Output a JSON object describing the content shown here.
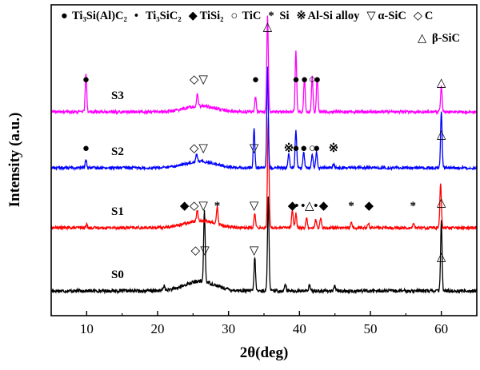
{
  "chart_data": {
    "type": "line",
    "xlabel": "2θ(deg)",
    "ylabel": "Intensity (a.u.)",
    "xlim": [
      5,
      65
    ],
    "xticks": [
      10,
      20,
      30,
      40,
      50,
      60
    ],
    "y_ticks_shown": false,
    "legend_placement": "top",
    "legend": [
      {
        "symbol": "●",
        "label": "Ti₃Si(Al)C₂"
      },
      {
        "symbol": "•",
        "label": "Ti₃SiC₂"
      },
      {
        "symbol": "◆",
        "label": "TiSi₂"
      },
      {
        "symbol": "○",
        "label": "TiC"
      },
      {
        "symbol": "*",
        "label": "Si"
      },
      {
        "symbol": "※",
        "label": "Al-Si alloy"
      },
      {
        "symbol": "▽",
        "label": "α-SiC"
      },
      {
        "symbol": "◇",
        "label": "C"
      },
      {
        "symbol": "△",
        "label": "β-SiC"
      }
    ],
    "series": [
      {
        "name": "S0",
        "color": "#000000",
        "baseline": 0.0,
        "background_hump": {
          "center": 26.0,
          "width": 3.0,
          "height": 0.1
        },
        "peaks": [
          [
            20.9,
            0.05
          ],
          [
            26.6,
            0.75
          ],
          [
            33.7,
            0.35
          ],
          [
            35.6,
            1.0
          ],
          [
            38.0,
            0.08
          ],
          [
            41.4,
            0.06
          ],
          [
            45.0,
            0.05
          ],
          [
            60.0,
            0.72
          ]
        ]
      },
      {
        "name": "S1",
        "color": "#ff0000",
        "baseline": 1.0,
        "background_hump": {
          "center": 26.0,
          "width": 3.0,
          "height": 0.09
        },
        "peaks": [
          [
            10.0,
            0.04
          ],
          [
            25.6,
            0.13
          ],
          [
            28.4,
            0.22
          ],
          [
            33.7,
            0.18
          ],
          [
            35.6,
            1.38
          ],
          [
            39.0,
            0.22
          ],
          [
            39.5,
            0.18
          ],
          [
            41.0,
            0.12
          ],
          [
            42.3,
            0.1
          ],
          [
            43.0,
            0.12
          ],
          [
            47.3,
            0.08
          ],
          [
            49.7,
            0.06
          ],
          [
            56.1,
            0.06
          ],
          [
            59.9,
            0.55
          ]
        ]
      },
      {
        "name": "S2",
        "color": "#0000ff",
        "baseline": 2.0,
        "background_hump": {
          "center": 26.0,
          "width": 3.0,
          "height": 0.08
        },
        "peaks": [
          [
            9.9,
            0.1
          ],
          [
            25.5,
            0.1
          ],
          [
            33.6,
            0.5
          ],
          [
            35.5,
            1.25
          ],
          [
            38.5,
            0.18
          ],
          [
            39.5,
            0.48
          ],
          [
            40.6,
            0.2
          ],
          [
            41.8,
            0.17
          ],
          [
            42.4,
            0.2
          ],
          [
            44.8,
            0.05
          ],
          [
            60.0,
            0.7
          ]
        ]
      },
      {
        "name": "S3",
        "color": "#ff00ff",
        "baseline": 3.0,
        "background_hump": {
          "center": 26.0,
          "width": 3.0,
          "height": 0.07
        },
        "peaks": [
          [
            9.9,
            0.45
          ],
          [
            25.6,
            0.15
          ],
          [
            33.8,
            0.18
          ],
          [
            35.5,
            1.15
          ],
          [
            39.5,
            0.72
          ],
          [
            40.7,
            0.4
          ],
          [
            41.8,
            0.42
          ],
          [
            42.5,
            0.42
          ],
          [
            60.0,
            0.3
          ]
        ]
      }
    ],
    "annotations": [
      {
        "series": "S3",
        "markers": [
          {
            "x": 9.9,
            "symbol": "●"
          },
          {
            "x": 25.8,
            "symbol": "◇▽"
          },
          {
            "x": 33.8,
            "symbol": "●"
          },
          {
            "x": 35.5,
            "symbol": "△"
          },
          {
            "x": 39.5,
            "symbol": "●"
          },
          {
            "x": 40.7,
            "symbol": "●"
          },
          {
            "x": 41.8,
            "symbol": "○"
          },
          {
            "x": 42.5,
            "symbol": "●"
          },
          {
            "x": 60.0,
            "symbol": "△"
          }
        ]
      },
      {
        "series": "S2",
        "markers": [
          {
            "x": 9.9,
            "symbol": "●"
          },
          {
            "x": 25.8,
            "symbol": "◇▽"
          },
          {
            "x": 33.6,
            "symbol": "▽"
          },
          {
            "x": 38.5,
            "symbol": "※"
          },
          {
            "x": 39.5,
            "symbol": "●"
          },
          {
            "x": 40.6,
            "symbol": "●"
          },
          {
            "x": 41.8,
            "symbol": "○"
          },
          {
            "x": 42.4,
            "symbol": "●"
          },
          {
            "x": 44.8,
            "symbol": "※"
          },
          {
            "x": 60.0,
            "symbol": "△"
          }
        ]
      },
      {
        "series": "S1",
        "markers": [
          {
            "x": 23.8,
            "symbol": "◆"
          },
          {
            "x": 25.8,
            "symbol": "◇▽"
          },
          {
            "x": 28.4,
            "symbol": "*"
          },
          {
            "x": 33.6,
            "symbol": "▽"
          },
          {
            "x": 39.0,
            "symbol": "◆"
          },
          {
            "x": 39.6,
            "symbol": "•"
          },
          {
            "x": 40.5,
            "symbol": "•"
          },
          {
            "x": 41.4,
            "symbol": "△"
          },
          {
            "x": 42.3,
            "symbol": "•"
          },
          {
            "x": 43.4,
            "symbol": "◆"
          },
          {
            "x": 47.3,
            "symbol": "*"
          },
          {
            "x": 49.8,
            "symbol": "◆"
          },
          {
            "x": 56.0,
            "symbol": "*"
          },
          {
            "x": 60.0,
            "symbol": "△"
          }
        ]
      },
      {
        "series": "S0",
        "markers": [
          {
            "x": 26.0,
            "symbol": "◇▽"
          },
          {
            "x": 33.6,
            "symbol": "▽"
          },
          {
            "x": 60.0,
            "symbol": "△"
          }
        ]
      }
    ]
  }
}
